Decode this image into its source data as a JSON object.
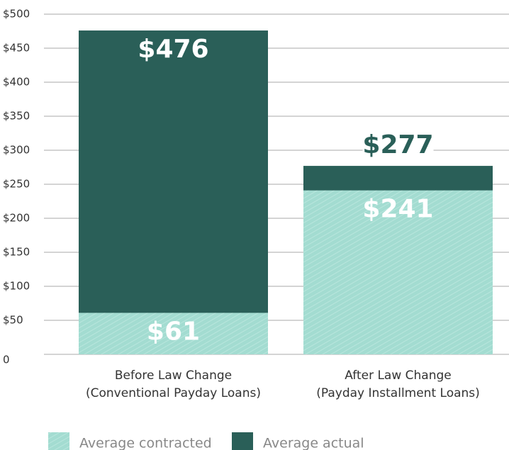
{
  "chart_data": {
    "type": "bar",
    "categories": [
      [
        "Before Law Change",
        "(Conventional Payday Loans)"
      ],
      [
        "After Law Change",
        "(Payday Installment Loans)"
      ]
    ],
    "series": [
      {
        "name": "Average contracted",
        "color": "#a3dcd1",
        "values": [
          61,
          241
        ],
        "value_labels": [
          "$61",
          "$241"
        ]
      },
      {
        "name": "Average actual",
        "color": "#2a5f58",
        "values": [
          476,
          277
        ],
        "value_labels": [
          "$476",
          "$277"
        ]
      }
    ],
    "ylim": [
      0,
      500
    ],
    "yticks": [
      0,
      {
        "value": 50,
        "label": "$50"
      },
      {
        "value": 100,
        "label": "$100"
      },
      {
        "value": 150,
        "label": "$150"
      },
      {
        "value": 200,
        "label": "$200"
      },
      {
        "value": 250,
        "label": "$250"
      },
      {
        "value": 300,
        "label": "$300"
      },
      {
        "value": 350,
        "label": "$350"
      },
      {
        "value": 400,
        "label": "$400"
      },
      {
        "value": 450,
        "label": "$450"
      },
      {
        "value": 500,
        "label": "$500"
      }
    ],
    "grid": true
  }
}
